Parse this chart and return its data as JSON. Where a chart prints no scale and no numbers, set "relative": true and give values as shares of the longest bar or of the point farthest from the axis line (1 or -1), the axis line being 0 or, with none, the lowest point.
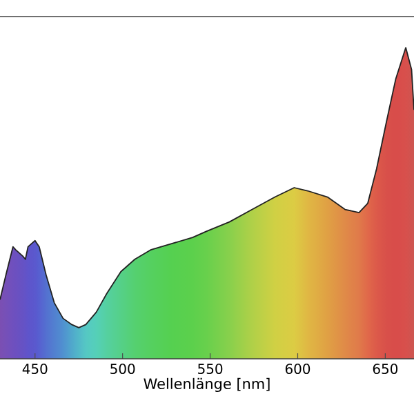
{
  "chart_data": {
    "type": "line",
    "relative": true,
    "xlabel": "Wellenlänge [nm]",
    "xlim": [
      430,
      666.4
    ],
    "xticks": [
      450,
      500,
      550,
      600,
      650
    ],
    "series": [
      {
        "color": "#222222",
        "x": [
          430,
          433.4,
          437.4,
          439,
          443,
          444.5,
          446,
          450,
          452.4,
          456.3,
          461,
          466,
          471,
          475,
          479,
          485,
          491,
          499,
          507,
          516,
          528,
          540,
          548,
          561,
          574,
          587,
          598,
          605.6,
          617,
          627,
          635,
          640,
          645,
          650.6,
          656,
          661.7,
          665,
          666.4
        ],
        "values": [
          0.19,
          0.27,
          0.36,
          0.35,
          0.33,
          0.32,
          0.36,
          0.38,
          0.36,
          0.27,
          0.18,
          0.13,
          0.11,
          0.1,
          0.11,
          0.15,
          0.21,
          0.28,
          0.32,
          0.35,
          0.37,
          0.39,
          0.41,
          0.44,
          0.48,
          0.52,
          0.55,
          0.54,
          0.52,
          0.48,
          0.47,
          0.5,
          0.61,
          0.76,
          0.9,
          1.0,
          0.93,
          0.8
        ],
        "colors": [
          "#7b4fb2",
          "#7650b8",
          "#6f50be",
          "#6c50c0",
          "#6652c4",
          "#6353c8",
          "#5f54ca",
          "#5a58ce",
          "#5760d0",
          "#5470d0",
          "#5280d0",
          "#5090d0",
          "#50a8cc",
          "#52b8c8",
          "#55c8c4",
          "#55d0b8",
          "#55d0a0",
          "#55d088",
          "#55d070",
          "#55d060",
          "#55d050",
          "#5cd04c",
          "#68d04c",
          "#88d04c",
          "#b0d048",
          "#d0d044",
          "#dccc44",
          "#e0b844",
          "#e0a044",
          "#e08a48",
          "#e07a4a",
          "#e0684a",
          "#dc5a4a",
          "#d8504a",
          "#d84c4a",
          "#d8504c",
          "#d05450",
          "#cc5650"
        ]
      }
    ]
  }
}
